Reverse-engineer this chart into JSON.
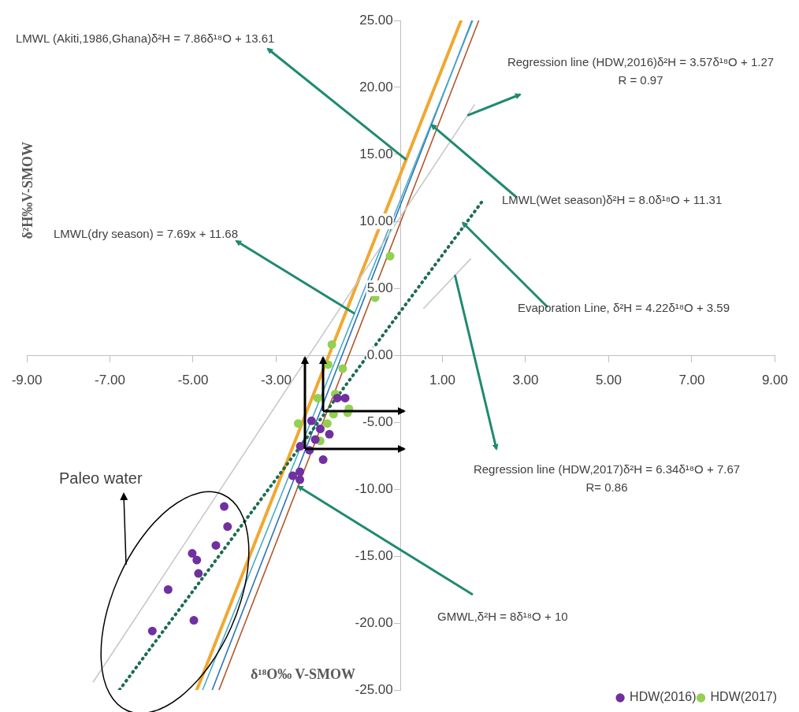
{
  "chart_data": {
    "type": "scatter",
    "xlabel": "δ¹⁸O‰  V-SMOW",
    "ylabel": "δ²H‰V-SMOW",
    "xlim": [
      -9,
      9
    ],
    "ylim": [
      -25,
      25
    ],
    "xticks": [
      {
        "value": -9,
        "label": "-9.00"
      },
      {
        "value": -7,
        "label": "-7.00"
      },
      {
        "value": -5,
        "label": "-5.00"
      },
      {
        "value": -3,
        "label": "-3.00"
      },
      {
        "value": 1,
        "label": "1.00"
      },
      {
        "value": 3,
        "label": "3.00"
      },
      {
        "value": 5,
        "label": "5.00"
      },
      {
        "value": 7,
        "label": "7.00"
      },
      {
        "value": 9,
        "label": "9.00"
      }
    ],
    "yticks": [
      {
        "value": -25,
        "label": "-25.00"
      },
      {
        "value": -20,
        "label": "-20.00"
      },
      {
        "value": -15,
        "label": "-15.00"
      },
      {
        "value": -10,
        "label": "-10.00"
      },
      {
        "value": -5,
        "label": "-5.00"
      },
      {
        "value": 0,
        "label": "0.00"
      },
      {
        "value": 5,
        "label": "5.00"
      },
      {
        "value": 10,
        "label": "10.00"
      },
      {
        "value": 15,
        "label": "15.00"
      },
      {
        "value": 20,
        "label": "20.00"
      },
      {
        "value": 25,
        "label": "25.00"
      }
    ],
    "legend": "bottom right",
    "series": [
      {
        "type": "line",
        "color": "#c8c8c8",
        "x": [
          -7.4,
          1.77
        ],
        "values": [
          -24.4,
          18.7
        ]
      },
      {
        "type": "line",
        "color": "#c8c8c8",
        "x": [
          0.55,
          1.68
        ],
        "values": [
          3.5,
          7.2
        ]
      },
      {
        "type": "line",
        "color": "#1e6b4f",
        "line_style": "dotted",
        "x": [
          -6.77,
          2.0
        ],
        "values": [
          -25,
          11.67
        ]
      },
      {
        "type": "line",
        "color": "#f0a830",
        "x": [
          -4.91,
          1.449
        ],
        "values": [
          -25,
          25
        ]
      },
      {
        "type": "line",
        "color": "#4bacc6",
        "x": [
          -4.77,
          1.73
        ],
        "values": [
          -25,
          25
        ]
      },
      {
        "type": "line",
        "color": "#2e75b6",
        "x": [
          -4.539,
          1.711
        ],
        "values": [
          -25,
          25
        ]
      },
      {
        "type": "line",
        "color": "#b5562a",
        "x": [
          -4.375,
          1.875
        ],
        "values": [
          -25,
          25
        ]
      },
      {
        "name": "HDW(2016)",
        "type": "scatter",
        "marker": "circle",
        "color": "#7030a0",
        "x": [
          -4.25,
          -4.17,
          -4.45,
          -5.02,
          -4.91,
          -4.87,
          -5.6,
          -4.98,
          -5.98,
          -1.87,
          -2.6,
          -2.43,
          -2.43,
          -1.34,
          -1.53,
          -2.15,
          -1.94,
          -2.06,
          -1.72,
          -2.2,
          -2.42
        ],
        "values": [
          -11.3,
          -12.8,
          -14.2,
          -14.8,
          -15.3,
          -16.3,
          -17.5,
          -19.8,
          -20.6,
          -7.8,
          -9.0,
          -9.3,
          -8.7,
          -3.2,
          -3.2,
          -4.9,
          -5.5,
          -6.3,
          -5.9,
          -7.1,
          -6.8
        ]
      },
      {
        "name": "HDW(2017)",
        "type": "scatter",
        "marker": "circle",
        "color": "#92d050",
        "x": [
          -0.26,
          -0.62,
          -1.66,
          -1.75,
          -1.4,
          -1.25,
          -1.28,
          -2.47,
          -1.62,
          -2.0,
          -1.77,
          -1.94,
          -1.58
        ],
        "values": [
          7.4,
          4.3,
          0.8,
          -0.7,
          -1.0,
          -4.0,
          -4.3,
          -5.1,
          -4.4,
          -3.2,
          -5.1,
          -6.4,
          -2.9
        ]
      }
    ],
    "annotations": [
      {
        "text": "LMWL (Akiti,1986,Ghana)δ²H = 7.86δ¹⁸O + 13.61",
        "x": 0.13,
        "y": 14.6
      },
      {
        "text": "Regression line (HDW,2016)δ²H = 3.57δ¹⁸O + 1.27\nR = 0.97",
        "x": 1.6,
        "y": 17.9
      },
      {
        "text": "LMWL(Wet season)δ²H = 8.0δ¹⁸O + 11.31",
        "x": 0.74,
        "y": 17.2
      },
      {
        "text": "LMWL(dry season) = 7.69x + 11.68",
        "x": -1.11,
        "y": 3.1
      },
      {
        "text": "Evaporation Line, δ²H = 4.22δ¹⁸O + 3.59",
        "x": 1.49,
        "y": 9.9
      },
      {
        "text": "Regression line (HDW,2017)δ²H = 6.34δ¹⁸O + 7.67\nR= 0.86",
        "x": 1.3,
        "y": 6.0
      },
      {
        "text": "GMWL,δ²H = 8δ¹⁸O + 10",
        "x": -2.47,
        "y": -9.8
      },
      "Paleo water"
    ]
  }
}
